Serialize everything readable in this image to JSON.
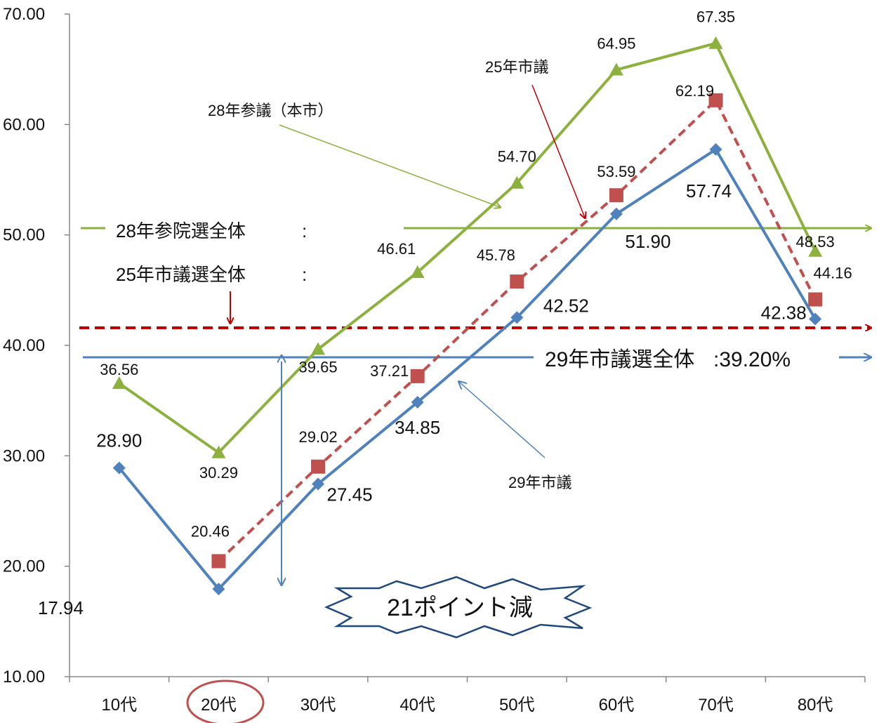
{
  "chart_data": {
    "type": "line",
    "categories": [
      "10代",
      "20代",
      "30代",
      "40代",
      "50代",
      "60代",
      "70代",
      "80代"
    ],
    "y_ticks": [
      "10.00",
      "20.00",
      "30.00",
      "40.00",
      "50.00",
      "60.00",
      "70.00"
    ],
    "ylim": [
      10,
      70
    ],
    "title": "",
    "xlabel": "",
    "ylabel": "",
    "series": [
      {
        "key": "sangi28",
        "name": "28年参議（本市）",
        "color": "#8db13f",
        "marker": "triangle",
        "dashed": false,
        "values": [
          36.56,
          30.29,
          39.65,
          46.61,
          54.7,
          64.95,
          67.35,
          48.53
        ],
        "labels": [
          "36.56",
          "30.29",
          "39.65",
          "46.61",
          "54.70",
          "64.95",
          "67.35",
          "48.53"
        ]
      },
      {
        "key": "shigi25",
        "name": "25年市議",
        "color": "#c0504d",
        "marker": "square",
        "dashed": true,
        "values": [
          null,
          20.46,
          29.02,
          37.21,
          45.78,
          53.59,
          62.19,
          44.16
        ],
        "labels": [
          "",
          "20.46",
          "29.02",
          "37.21",
          "45.78",
          "53.59",
          "62.19",
          "44.16"
        ]
      },
      {
        "key": "shigi29",
        "name": "29年市議",
        "color": "#4f81bd",
        "marker": "diamond",
        "dashed": false,
        "values": [
          28.9,
          17.94,
          27.45,
          34.85,
          42.52,
          51.9,
          57.74,
          42.38
        ],
        "labels": [
          "28.90",
          "17.94",
          "27.45",
          "34.85",
          "42.52",
          "51.90",
          "57.74",
          "42.38"
        ]
      }
    ],
    "reference_lines": [
      {
        "key": "sangi28_all",
        "color": "#8db13f",
        "label": "28年参院選全体",
        "suffix": ":"
      },
      {
        "key": "shigi25_all",
        "color": "#c00000",
        "label": "25年市議選全体",
        "suffix": ":"
      },
      {
        "key": "shigi29_all",
        "color": "#4f81bd",
        "label": "29年市議選全体",
        "suffix": ":39.20%",
        "value": 39.2
      }
    ],
    "annotations": {
      "drop_label": "21ポイント減",
      "callout_sangi": "28年参議（本市）",
      "callout_shigi25": "25年市議",
      "callout_shigi29": "29年市議",
      "highlight_category": "20代",
      "highlight_color": "#c0504d"
    }
  }
}
